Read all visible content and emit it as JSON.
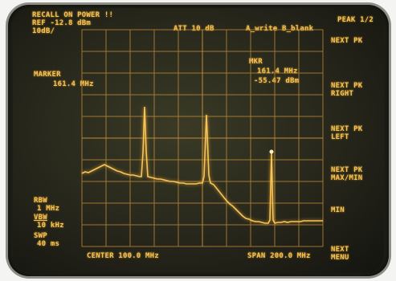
{
  "header": {
    "recall": "RECALL ON POWER !!",
    "ref": "REF -12.8 dBm",
    "scale": "10dB/",
    "att": "ATT 10 dB",
    "trace_mode": "A_write B_blank"
  },
  "marker": {
    "label": "MARKER",
    "freq": "161.4 MHz",
    "mkr_label": "MKR",
    "mkr_freq": "161.4  MHz",
    "mkr_level": "-55.47  dBm"
  },
  "bandwidth": {
    "rbw_label": "RBW",
    "rbw": "1 MHz",
    "vbw_label": "VBW",
    "vbw": "10 kHz",
    "swp_label": "SWP",
    "swp": "40 ms"
  },
  "footer": {
    "center": "CENTER 100.0 MHz",
    "span": "SPAN 200.0 MHz"
  },
  "softkeys": {
    "title": "PEAK 1/2",
    "next_pk": "NEXT PK",
    "next_pk_right_1": "NEXT PK",
    "next_pk_right_2": "RIGHT",
    "next_pk_left_1": "NEXT PK",
    "next_pk_left_2": "LEFT",
    "next_pk_maxmin_1": "NEXT PK",
    "next_pk_maxmin_2": "MAX/MIN",
    "min": "MIN",
    "next_menu_1": "NEXT",
    "next_menu_2": "MENU"
  },
  "colors": {
    "trace": "#f3c55c",
    "background": "#24241a"
  }
}
